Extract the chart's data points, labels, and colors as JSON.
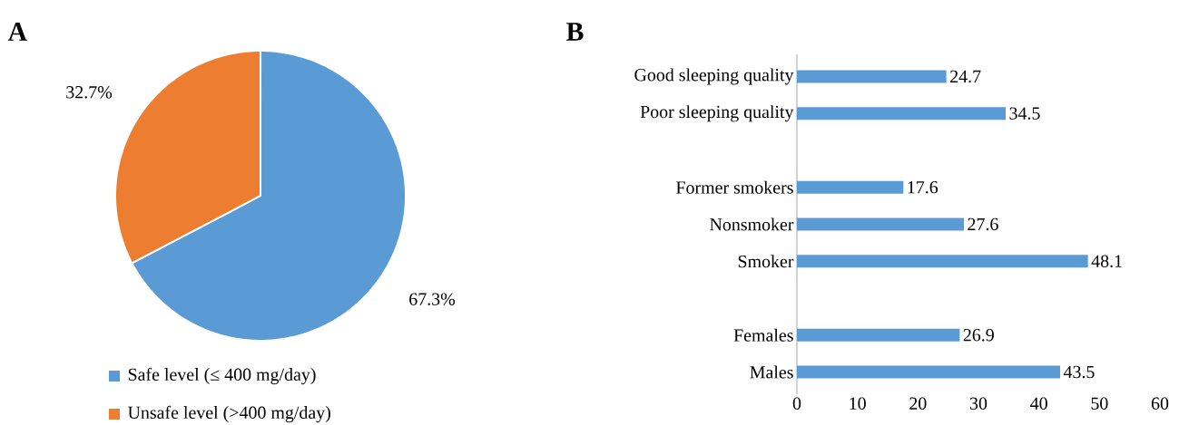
{
  "chart_data": [
    {
      "type": "pie",
      "title": "A",
      "categories": [
        "Safe level (≤ 400 mg/day)",
        "Unsafe level (>400 mg/day)"
      ],
      "values": [
        67.3,
        32.7
      ],
      "colors": [
        "#5b9bd5",
        "#ed7d31"
      ],
      "value_labels": [
        "67.3%",
        "32.7%"
      ],
      "legend": "bottom"
    },
    {
      "type": "bar",
      "title": "B",
      "orientation": "horizontal",
      "categories": [
        "Good sleeping quality",
        "Poor sleeping quality",
        null,
        "Former smokers",
        "Nonsmoker",
        "Smoker",
        null,
        "Females",
        "Males"
      ],
      "values": [
        24.7,
        34.5,
        null,
        17.6,
        27.6,
        48.1,
        null,
        26.9,
        43.5
      ],
      "color": "#5b9bd5",
      "xlim": [
        0,
        60
      ],
      "xticks": [
        0,
        10,
        20,
        30,
        40,
        50,
        60
      ],
      "data_labels": true
    }
  ]
}
